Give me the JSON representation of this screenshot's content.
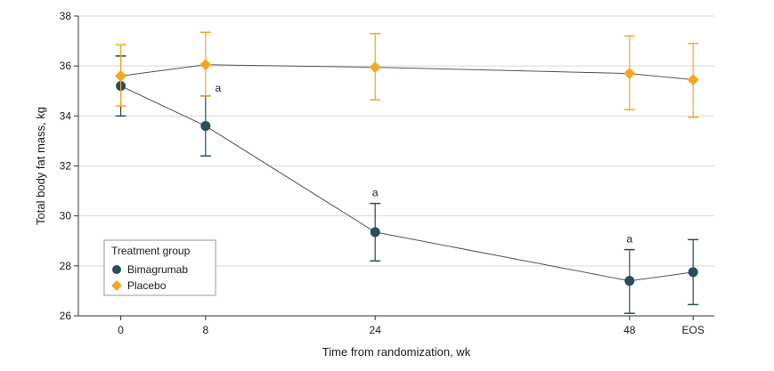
{
  "chart_data": {
    "type": "line",
    "xlabel": "Time from randomization, wk",
    "ylabel": "Total body fat mass, kg",
    "categories": [
      "0",
      "8",
      "24",
      "48",
      "EOS"
    ],
    "x_positions": [
      0,
      8,
      24,
      48,
      54
    ],
    "ylim": [
      26,
      38
    ],
    "yticks": [
      "26",
      "28",
      "30",
      "32",
      "34",
      "36",
      "38"
    ],
    "grid": "horizontal",
    "legend": {
      "title": "Treatment group",
      "placement": "bottom-left"
    },
    "series": [
      {
        "name": "Bimagrumab",
        "color": "#264e5c",
        "marker": "circle",
        "values": [
          35.2,
          33.6,
          29.35,
          27.4,
          27.75
        ],
        "error_low": [
          34.0,
          32.4,
          28.2,
          26.1,
          26.45
        ],
        "error_high": [
          36.4,
          34.8,
          30.5,
          28.65,
          29.05
        ]
      },
      {
        "name": "Placebo",
        "color": "#f5a623",
        "marker": "diamond",
        "values": [
          35.6,
          36.05,
          35.95,
          35.7,
          35.45
        ],
        "error_low": [
          34.4,
          34.8,
          34.65,
          34.25,
          33.95
        ],
        "error_high": [
          36.85,
          37.35,
          37.3,
          37.2,
          36.9
        ]
      }
    ],
    "annotations": [
      {
        "text": "a",
        "x": 8,
        "y": 34.8
      },
      {
        "text": "a",
        "x": 24,
        "y": 30.5
      },
      {
        "text": "a",
        "x": 48,
        "y": 28.65
      }
    ]
  }
}
